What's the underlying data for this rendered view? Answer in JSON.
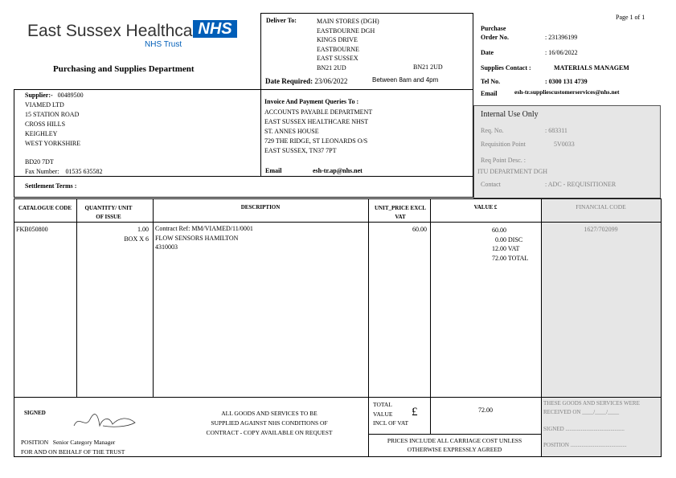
{
  "header": {
    "org_name": "East Sussex Healthcare",
    "nhs_logo": "NHS",
    "trust": "NHS Trust",
    "department": "Purchasing and Supplies Department",
    "page": "Page 1 of 1"
  },
  "deliver": {
    "label": "Deliver To:",
    "lines": [
      "MAIN STORES (DGH)",
      "EASTBOURNE DGH",
      "KINGS DRIVE",
      "EASTBOURNE",
      "EAST SUSSEX",
      "BN21 2UD"
    ],
    "postcode2": "BN21 2UD",
    "date_label": "Date Required:",
    "date": "23/06/2022",
    "time": "Between 8am and 4pm"
  },
  "order": {
    "po_label1": "Purchase",
    "po_label2": "Order No.",
    "po": ": 231396199",
    "date_label": "Date",
    "date": ": 16/06/2022",
    "contact_label": "Supplies Contact :",
    "contact": "MATERIALS MANAGEM",
    "tel_label": "Tel No.",
    "tel": ": 0300 131 4739",
    "email_label": "Email",
    "email": "esh-tr.suppliescustomerservices@nhs.net"
  },
  "supplier": {
    "label": "Supplier:-",
    "code": "00489500",
    "lines": [
      "VIAMED LTD",
      "15 STATION ROAD",
      "CROSS HILLS",
      "KEIGHLEY",
      "WEST YORKSHIRE"
    ],
    "postcode": "BD20 7DT",
    "fax_label": "Fax Number:",
    "fax": "01535 635582",
    "settlement": "Settlement Terms :"
  },
  "invoice": {
    "label": "Invoice And Payment Queries To :",
    "lines": [
      "ACCOUNTS PAYABLE DEPARTMENT",
      "EAST SUSSEX HEALTHCARE NHST",
      "ST. ANNES HOUSE",
      "729 THE RIDGE, ST LEONARDS O/S",
      "EAST SUSSEX, TN37 7PT"
    ],
    "email_label": "Email",
    "email": "esh-tr.ap@nhs.net"
  },
  "internal": {
    "title": "Internal Use Only",
    "req_label": "Req. No.",
    "req": ": 683311",
    "point_label": "Requisition Point",
    "point": "5V0033",
    "desc_label": "Req Point Desc.  :",
    "desc": "ITU DEPARTMENT DGH",
    "contact_label": "Contact",
    "contact": ": ADC - REQUISITIONER"
  },
  "table": {
    "headers": [
      "CATALOGUE CODE",
      "QUANTITY/ UNIT OF ISSUE",
      "DESCRIPTION",
      "UNIT_PRICE EXCL VAT",
      "VALUE £",
      "FINANCIAL CODE"
    ],
    "row": {
      "code": "FKB050800",
      "qty": "1.00",
      "unit": "BOX X 6",
      "desc": [
        "Contract Ref: MM/VIAMED/11/0001",
        "FLOW SENSORS HAMILTON",
        "4310003"
      ],
      "price": "60.00",
      "values": [
        [
          "60.00",
          ""
        ],
        [
          "0.00",
          "DISC"
        ],
        [
          "12.00",
          "VAT"
        ],
        [
          "72.00",
          "TOTAL"
        ]
      ],
      "fin_code": "1627/702099"
    }
  },
  "footer": {
    "signed": "SIGNED",
    "position_label": "POSITION",
    "position": "Senior Category Manager",
    "behalf": "FOR AND ON BEHALF OF THE TRUST",
    "conditions": [
      "ALL GOODS AND SERVICES TO BE",
      "SUPPLIED AGAINST NHS CONDITIONS OF",
      "CONTRACT - COPY AVAILABLE ON REQUEST"
    ],
    "total_label": [
      "TOTAL",
      "VALUE",
      "INCL OF VAT"
    ],
    "pound": "£",
    "total": "72.00",
    "prices_note": [
      "PRICES INCLUDE ALL CARRIAGE COST UNLESS",
      "OTHERWISE EXPRESSLY AGREED"
    ],
    "received": [
      "THESE GOODS AND SERVICES WERE",
      "RECEIVED ON ____/____/____"
    ],
    "signed_line": "SIGNED ..........................................",
    "position_line": "POSITION ........................................"
  },
  "colors": {
    "nhs_blue": "#005eb8",
    "grey_panel": "#e6e6e6"
  }
}
